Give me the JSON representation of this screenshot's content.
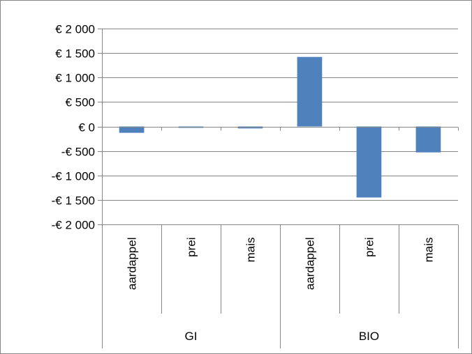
{
  "chart_data": {
    "type": "bar",
    "title": "",
    "xlabel": "",
    "ylabel": "",
    "ylim": [
      -2000,
      2000
    ],
    "y_ticks": [
      2000,
      1500,
      1000,
      500,
      0,
      -500,
      -1000,
      -1500,
      -2000
    ],
    "y_tick_labels": [
      "€ 2 000",
      "€ 1 500",
      "€ 1 000",
      "€ 500",
      "€ 0",
      "-€ 500",
      "-€ 1 000",
      "-€ 1 500",
      "-€ 2 000"
    ],
    "grid": true,
    "legend": "none",
    "groups": [
      {
        "label": "GI",
        "categories": [
          "aardappel",
          "prei",
          "mais"
        ]
      },
      {
        "label": "BIO",
        "categories": [
          "aardappel",
          "prei",
          "mais"
        ]
      }
    ],
    "categories": [
      "aardappel",
      "prei",
      "mais",
      "aardappel",
      "prei",
      "mais"
    ],
    "values": [
      -130,
      -15,
      -40,
      1420,
      -1450,
      -530
    ],
    "bar_color": "#4F81BD",
    "grid_color": "#868686"
  }
}
